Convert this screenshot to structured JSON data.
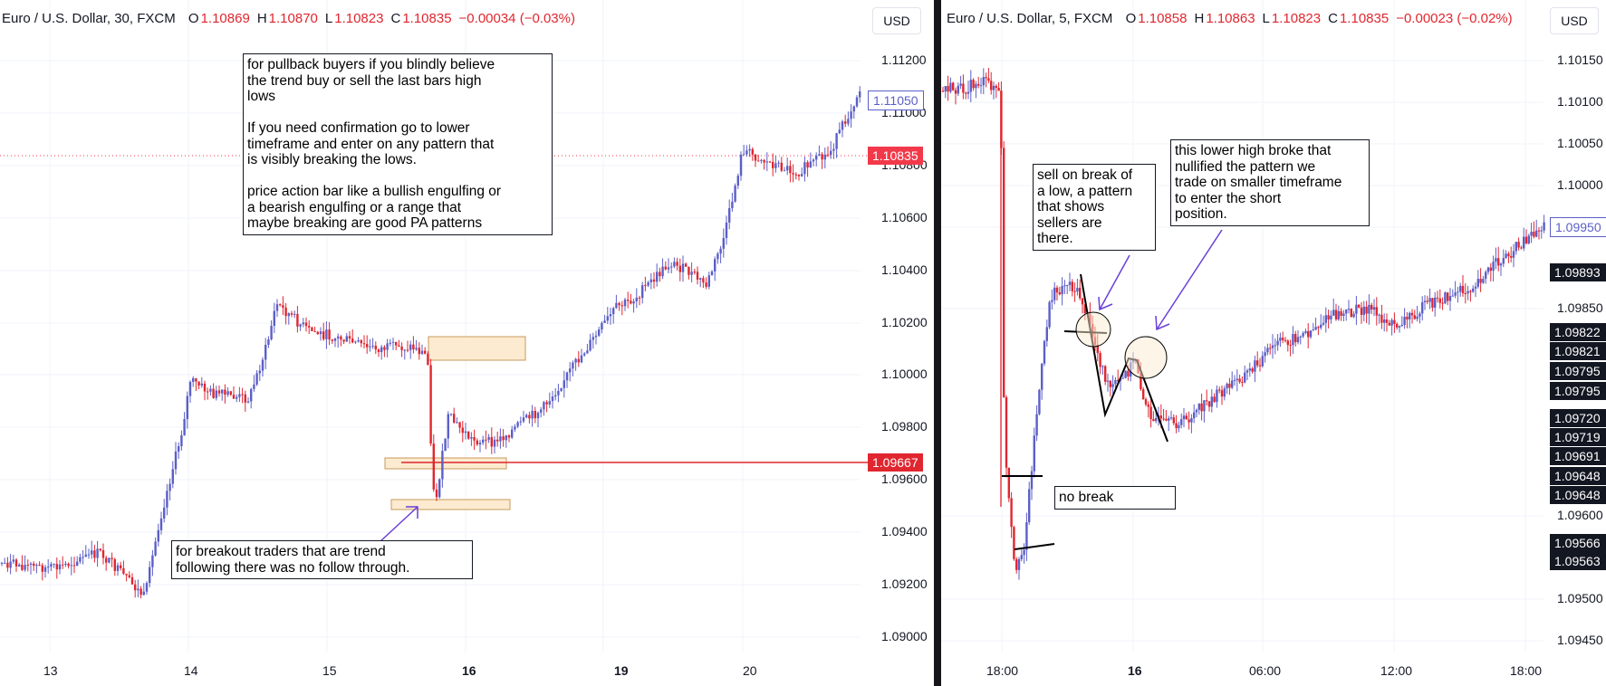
{
  "left": {
    "legend": {
      "symbol": "Euro / U.S. Dollar, 30, FXCM",
      "o_label": "O",
      "o_value": "1.10869",
      "h_label": "H",
      "h_value": "1.10870",
      "l_label": "L",
      "l_value": "1.10823",
      "c_label": "C",
      "c_value": "1.10835",
      "change": "−0.00034 (−0.03%)"
    },
    "currency": "USD",
    "price_axis": [
      "1.11200",
      "1.11000",
      "1.10800",
      "1.10600",
      "1.10400",
      "1.10200",
      "1.10000",
      "1.09800",
      "1.09600",
      "1.09400",
      "1.09200",
      "1.09000"
    ],
    "time_axis": [
      "13",
      "14",
      "15",
      "16",
      "19",
      "20"
    ],
    "tags": {
      "alert": "1.11050",
      "last_price": "1.10835",
      "hline_price": "1.09667"
    },
    "notes": {
      "pullback": "for pullback buyers if you blindly believe\nthe trend buy or sell the last bars high\nlows\n\nIf you need confirmation go to lower\ntimeframe and enter on any pattern that\nis visibly breaking the lows.\n\nprice action bar like a bullish engulfing or\na bearish engulfing or a range that\nmaybe breaking are good PA patterns",
      "breakout": "for breakout traders that are trend\nfollowing there was no follow through."
    }
  },
  "right": {
    "legend": {
      "symbol": "Euro / U.S. Dollar, 5, FXCM",
      "o_label": "O",
      "o_value": "1.10858",
      "h_label": "H",
      "h_value": "1.10863",
      "l_label": "L",
      "l_value": "1.10823",
      "c_label": "C",
      "c_value": "1.10835",
      "change": "−0.00023 (−0.02%)"
    },
    "currency": "USD",
    "price_axis": [
      "1.10150",
      "1.10100",
      "1.10050",
      "1.10000",
      "1.09950",
      "1.09850",
      "1.09600",
      "1.09500",
      "1.09450"
    ],
    "time_axis": [
      "18:00",
      "16",
      "06:00",
      "12:00",
      "18:00"
    ],
    "tags": {
      "alert": "1.09950",
      "dark": [
        "1.09893",
        "1.09822",
        "1.09821",
        "1.09795",
        "1.09795",
        "1.09720",
        "1.09719",
        "1.09691",
        "1.09648",
        "1.09648",
        "1.09566",
        "1.09563"
      ]
    },
    "notes": {
      "sell": "sell on break of\na low, a pattern\nthat shows\nsellers are\nthere.",
      "lower_high": "this lower high broke that\nnullified the pattern we\ntrade on smaller timeframe\nto enter the short\nposition.",
      "no_break": "no break"
    }
  },
  "colors": {
    "up": "#5b5fc7",
    "down": "#e0262f",
    "annotation": "#6a3fd8",
    "box_fill": "#fcebd0",
    "box_border": "#c89a5c"
  }
}
